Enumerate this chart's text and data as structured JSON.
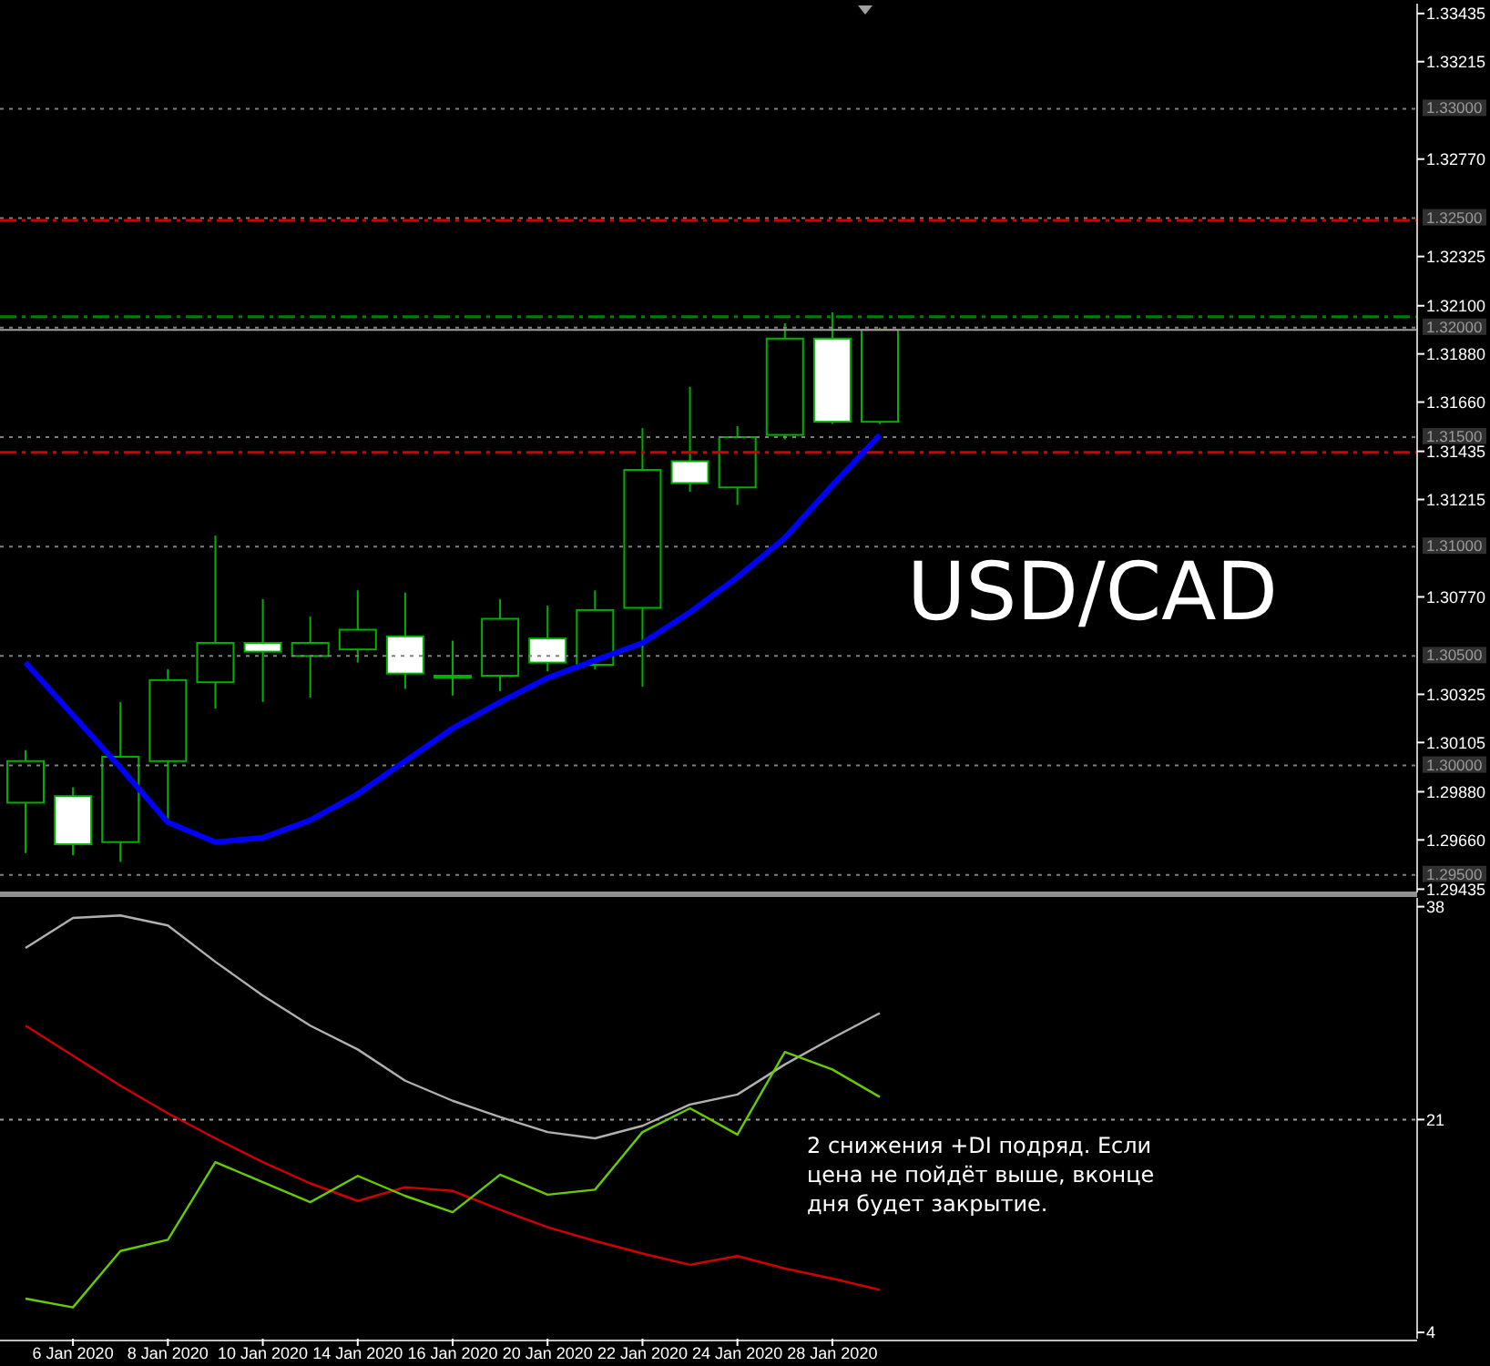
{
  "chart_data": [
    {
      "type": "candlestick",
      "categories": [
        null,
        null,
        null,
        null,
        null,
        null,
        null,
        null,
        null,
        null,
        null,
        null,
        null,
        null,
        null,
        null,
        null,
        null,
        null
      ],
      "ohlc": [
        [
          1.2983,
          1.3007,
          1.296,
          1.3002
        ],
        [
          1.2986,
          1.299,
          1.2959,
          1.2964
        ],
        [
          1.2965,
          1.3029,
          1.2956,
          1.3004
        ],
        [
          1.3002,
          1.3044,
          1.2975,
          1.3039
        ],
        [
          1.3038,
          1.3105,
          1.3026,
          1.3056
        ],
        [
          1.3056,
          1.3076,
          1.3029,
          1.3052
        ],
        [
          1.305,
          1.3068,
          1.3031,
          1.3056
        ],
        [
          1.3053,
          1.308,
          1.3047,
          1.3062
        ],
        [
          1.3059,
          1.3079,
          1.3035,
          1.3042
        ],
        [
          1.3041,
          1.3057,
          1.3032,
          1.3041
        ],
        [
          1.3041,
          1.3076,
          1.3034,
          1.3067
        ],
        [
          1.3058,
          1.3073,
          1.3043,
          1.3047
        ],
        [
          1.3046,
          1.308,
          1.3044,
          1.3071
        ],
        [
          1.3072,
          1.3154,
          1.3036,
          1.3135
        ],
        [
          1.3139,
          1.3173,
          1.3125,
          1.3129
        ],
        [
          1.3127,
          1.3155,
          1.3119,
          1.315
        ],
        [
          1.3151,
          1.3202,
          1.3149,
          1.3195
        ],
        [
          1.3195,
          1.3207,
          1.3156,
          1.3157
        ],
        [
          1.3157,
          1.32,
          1.3156,
          1.3199
        ]
      ],
      "series": [
        {
          "type": "line",
          "color": "#0000ff",
          "values": [
            1.3047,
            1.3023,
            1.2999,
            1.2974,
            1.2965,
            1.2967,
            1.2975,
            1.2987,
            1.3002,
            1.3017,
            1.3029,
            1.304,
            1.3048,
            1.3056,
            1.307,
            1.3086,
            1.3104,
            1.3128,
            1.3151
          ]
        }
      ],
      "ylim": [
        1.2942,
        1.3348
      ],
      "yticks": [
        1.33435,
        1.33215,
        {
          "value": 1.3277,
          "label": "1.32770"
        },
        1.32325,
        {
          "value": 1.321,
          "label": "1.32100"
        },
        {
          "value": 1.3188,
          "label": "1.31880"
        },
        {
          "value": 1.3166,
          "label": "1.31660"
        },
        1.31435,
        1.31215,
        {
          "value": 1.3077,
          "label": "1.30770"
        },
        1.30325,
        1.30105,
        {
          "value": 1.2988,
          "label": "1.29880"
        },
        {
          "value": 1.2966,
          "label": "1.29660"
        },
        1.29435
      ],
      "tick_labels": "y",
      "ref_lines": [
        {
          "axis": "y",
          "value": 1.33,
          "label": "1.33000",
          "color": "#808080",
          "line_style": "dotted"
        },
        {
          "axis": "y",
          "value": 1.325,
          "label": "1.32500",
          "color": "#808080",
          "line_style": "dotted"
        },
        {
          "axis": "y",
          "value": 1.32,
          "label": "1.32000",
          "color": "#808080",
          "line_style": "dotted"
        },
        {
          "axis": "y",
          "value": 1.315,
          "label": "1.31500",
          "color": "#808080",
          "line_style": "dotted"
        },
        {
          "axis": "y",
          "value": 1.31,
          "label": "1.31000",
          "color": "#808080",
          "line_style": "dotted"
        },
        {
          "axis": "y",
          "value": 1.305,
          "label": "1.30500",
          "color": "#808080",
          "line_style": "dotted"
        },
        {
          "axis": "y",
          "value": 1.3,
          "label": "1.30000",
          "color": "#808080",
          "line_style": "dotted"
        },
        {
          "axis": "y",
          "value": 1.295,
          "label": "1.29500",
          "color": "#808080",
          "line_style": "dotted"
        },
        {
          "axis": "y",
          "value": 1.3249,
          "color": "#d00000",
          "line_style": "dashed"
        },
        {
          "axis": "y",
          "value": 1.3143,
          "color": "#d00000",
          "line_style": "dashed"
        },
        {
          "axis": "y",
          "value": 1.3205,
          "color": "#008000",
          "line_style": "dashed"
        },
        {
          "axis": "y",
          "value": 1.3199,
          "color": "#a0a0a0",
          "line_style": "solid"
        }
      ],
      "annotations": [
        "USD/CAD"
      ]
    },
    {
      "type": "line",
      "categories": [
        null,
        "6 Jan 2020",
        null,
        "8 Jan 2020",
        null,
        "10 Jan 2020",
        null,
        "14 Jan 2020",
        null,
        "16 Jan 2020",
        null,
        "20 Jan 2020",
        null,
        "22 Jan 2020",
        null,
        "24 Jan 2020",
        null,
        "28 Jan 2020",
        null
      ],
      "series": [
        {
          "color": "#b0b0b0",
          "values": [
            34.7,
            37.1,
            37.3,
            36.5,
            33.6,
            30.9,
            28.5,
            26.6,
            24.1,
            22.5,
            21.2,
            20.0,
            19.5,
            20.5,
            22.2,
            23.0,
            25.4,
            27.5,
            29.5
          ]
        },
        {
          "color": "#d00000",
          "values": [
            28.5,
            26.1,
            23.7,
            21.5,
            19.5,
            17.6,
            15.9,
            14.5,
            15.6,
            15.3,
            13.8,
            12.4,
            11.3,
            10.3,
            9.4,
            10.1,
            9.1,
            8.3,
            7.4
          ]
        },
        {
          "color": "#66cc00",
          "values": [
            6.7,
            6.0,
            10.5,
            11.4,
            17.6,
            16.0,
            14.4,
            16.5,
            14.9,
            13.6,
            16.6,
            15.0,
            15.4,
            20.0,
            21.9,
            19.8,
            26.4,
            25.0,
            22.8
          ]
        }
      ],
      "ylim": [
        3.5,
        38.7
      ],
      "yticks": [
        38,
        21,
        4
      ],
      "ref_lines": [
        {
          "axis": "y",
          "value": 21,
          "color": "#a0a0a0",
          "line_style": "dotted"
        }
      ],
      "annotations": [
        "2 снижения +DI подряд. Если\nцена не пойдёт выше, вконце\nдня будет закрытие."
      ]
    }
  ]
}
